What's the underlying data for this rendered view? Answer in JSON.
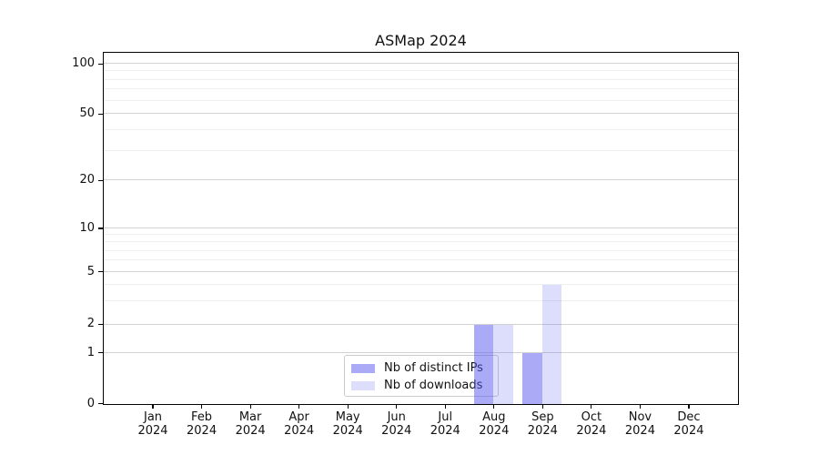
{
  "window": {
    "background": "#ffffff"
  },
  "chart_data": {
    "type": "bar",
    "title": "ASMap 2024",
    "categories": [
      "Jan 2024",
      "Feb 2024",
      "Mar 2024",
      "Apr 2024",
      "May 2024",
      "Jun 2024",
      "Jul 2024",
      "Aug 2024",
      "Sep 2024",
      "Oct 2024",
      "Nov 2024",
      "Dec 2024"
    ],
    "series": [
      {
        "name": "Nb of distinct IPs",
        "color": "rgba(85,85,240,0.5)",
        "values": [
          0,
          0,
          0,
          0,
          0,
          0,
          0,
          2,
          1,
          0,
          0,
          0
        ]
      },
      {
        "name": "Nb of downloads",
        "color": "rgba(85,85,240,0.2)",
        "values": [
          0,
          0,
          0,
          0,
          0,
          0,
          0,
          2,
          4,
          0,
          0,
          0
        ]
      }
    ],
    "xlabel": "",
    "ylabel": "",
    "y_axis": {
      "scale": "asinh-like (linear 0-1, log-compressed above)",
      "major_ticks": [
        0,
        1,
        2,
        5,
        10,
        20,
        50,
        100
      ],
      "minor_gridlines": [
        3,
        4,
        6,
        7,
        8,
        9,
        30,
        40,
        60,
        70,
        80,
        90
      ],
      "scale_anchors": [
        [
          0,
          0.0
        ],
        [
          1,
          0.145
        ],
        [
          2,
          0.2262
        ],
        [
          5,
          0.3756
        ],
        [
          10,
          0.5
        ],
        [
          20,
          0.6365
        ],
        [
          50,
          0.8264
        ],
        [
          100,
          0.9689
        ]
      ]
    },
    "grid": true,
    "legend_position": "lower center"
  },
  "colors": {
    "bar_dark": "rgba(85,85,240,0.5)",
    "bar_light": "rgba(85,85,240,0.2)",
    "grid_major": "#d2d2d2",
    "grid_minor": "#eeeeee",
    "spine": "#000000",
    "text": "#111111",
    "legend_border": "#cccccc"
  }
}
